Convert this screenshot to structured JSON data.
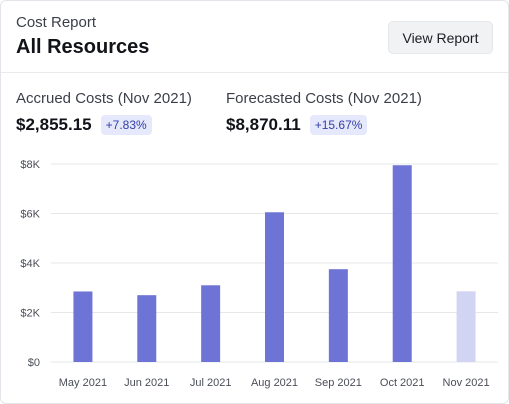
{
  "header": {
    "subtitle": "Cost Report",
    "title": "All Resources",
    "view_button": "View Report"
  },
  "metrics": {
    "accrued": {
      "label": "Accrued Costs (Nov 2021)",
      "value": "$2,855.15",
      "change": "+7.83%"
    },
    "forecasted": {
      "label": "Forecasted Costs (Nov 2021)",
      "value": "$8,870.11",
      "change": "+15.67%"
    }
  },
  "colors": {
    "bar": "#6e74d6",
    "bar_forecast": "#d2d4f3",
    "grid": "#e6e7eb",
    "badge_bg": "#e6e8fb",
    "badge_text": "#3340a8"
  },
  "chart_data": {
    "type": "bar",
    "categories": [
      "May 2021",
      "Jun 2021",
      "Jul 2021",
      "Aug 2021",
      "Sep 2021",
      "Oct 2021",
      "Nov 2021"
    ],
    "values": [
      2850,
      2700,
      3100,
      6050,
      3750,
      7950,
      2855.15
    ],
    "forecast_index": 6,
    "ylim": [
      0,
      8000
    ],
    "yticks": [
      0,
      2000,
      4000,
      6000,
      8000
    ],
    "ytick_labels": [
      "$0",
      "$2K",
      "$4K",
      "$6K",
      "$8K"
    ],
    "grid": true,
    "legend": "none"
  }
}
